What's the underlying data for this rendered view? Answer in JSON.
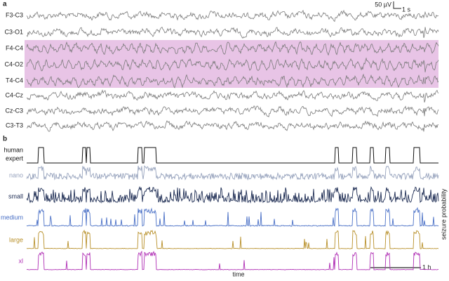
{
  "panels": [
    {
      "label": "a",
      "channels": [
        "F3-C3",
        "C3-O1",
        "F4-C4",
        "C4-O2",
        "T4-C4",
        "C4-Cz",
        "Cz-C3",
        "C3-T3"
      ],
      "scale_bar": {
        "amplitude": "50 µV",
        "time": "1 s"
      }
    },
    {
      "label": "b",
      "rows": [
        {
          "label": [
            "human",
            "expert"
          ]
        },
        {
          "label": [
            "nano"
          ]
        },
        {
          "label": [
            "small"
          ]
        },
        {
          "label": [
            "medium"
          ]
        },
        {
          "label": [
            "large"
          ]
        },
        {
          "label": [
            "xl"
          ]
        }
      ],
      "x_label": "time",
      "y_label": "seizure probability",
      "scale_bar": "1 h"
    }
  ]
}
